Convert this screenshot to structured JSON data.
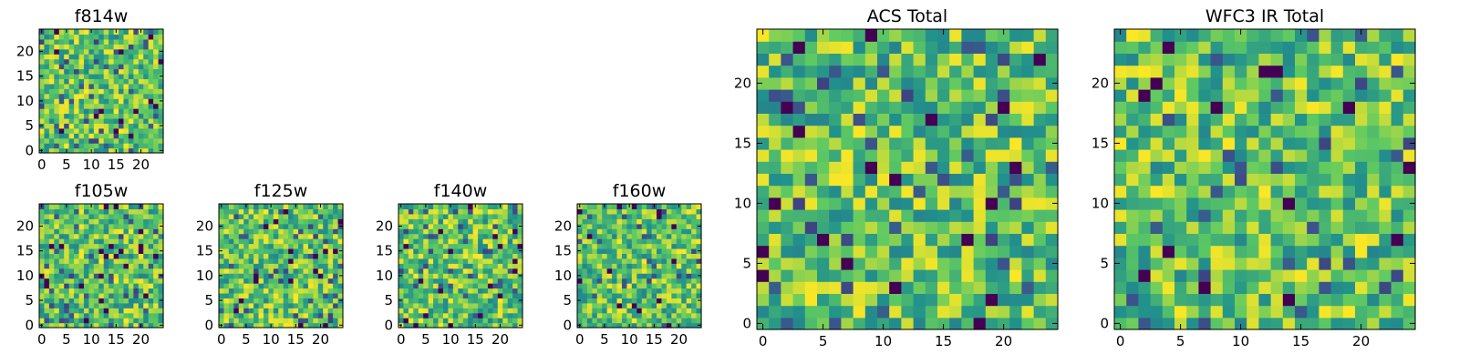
{
  "chart_data": [
    {
      "type": "heatmap",
      "title": "f814w",
      "xlim": [
        0,
        24
      ],
      "ylim": [
        0,
        24
      ],
      "xticks": [
        "0",
        "5",
        "10",
        "15",
        "20"
      ],
      "yticks": [
        "0",
        "5",
        "10",
        "15",
        "20"
      ],
      "colormap": [
        "#440154",
        "#3b528b",
        "#21918c",
        "#5ec962",
        "#fde725"
      ],
      "seed": 11,
      "grid": false
    },
    {
      "type": "heatmap",
      "title": "f105w",
      "xlim": [
        0,
        24
      ],
      "ylim": [
        0,
        24
      ],
      "xticks": [
        "0",
        "5",
        "10",
        "15",
        "20"
      ],
      "yticks": [
        "0",
        "5",
        "10",
        "15",
        "20"
      ],
      "colormap": [
        "#440154",
        "#3b528b",
        "#21918c",
        "#5ec962",
        "#fde725"
      ],
      "seed": 23,
      "grid": false
    },
    {
      "type": "heatmap",
      "title": "f125w",
      "xlim": [
        0,
        24
      ],
      "ylim": [
        0,
        24
      ],
      "xticks": [
        "0",
        "5",
        "10",
        "15",
        "20"
      ],
      "yticks": [
        "0",
        "5",
        "10",
        "15",
        "20"
      ],
      "colormap": [
        "#440154",
        "#3b528b",
        "#21918c",
        "#5ec962",
        "#fde725"
      ],
      "seed": 37,
      "grid": false
    },
    {
      "type": "heatmap",
      "title": "f140w",
      "xlim": [
        0,
        24
      ],
      "ylim": [
        0,
        24
      ],
      "xticks": [
        "0",
        "5",
        "10",
        "15",
        "20"
      ],
      "yticks": [
        "0",
        "5",
        "10",
        "15",
        "20"
      ],
      "colormap": [
        "#440154",
        "#3b528b",
        "#21918c",
        "#5ec962",
        "#fde725"
      ],
      "seed": 41,
      "grid": false
    },
    {
      "type": "heatmap",
      "title": "f160w",
      "xlim": [
        0,
        24
      ],
      "ylim": [
        0,
        24
      ],
      "xticks": [
        "0",
        "5",
        "10",
        "15",
        "20"
      ],
      "yticks": [
        "0",
        "5",
        "10",
        "15",
        "20"
      ],
      "colormap": [
        "#440154",
        "#3b528b",
        "#21918c",
        "#5ec962",
        "#fde725"
      ],
      "seed": 53,
      "grid": false
    },
    {
      "type": "heatmap",
      "title": "ACS Total",
      "xlim": [
        0,
        24
      ],
      "ylim": [
        0,
        24
      ],
      "xticks": [
        "0",
        "5",
        "10",
        "15",
        "20"
      ],
      "yticks": [
        "0",
        "5",
        "10",
        "15",
        "20"
      ],
      "colormap": [
        "#440154",
        "#3b528b",
        "#21918c",
        "#5ec962",
        "#fde725"
      ],
      "seed": 67,
      "grid": false
    },
    {
      "type": "heatmap",
      "title": "WFC3 IR Total",
      "xlim": [
        0,
        24
      ],
      "ylim": [
        0,
        24
      ],
      "xticks": [
        "0",
        "5",
        "10",
        "15",
        "20"
      ],
      "yticks": [
        "0",
        "5",
        "10",
        "15",
        "20"
      ],
      "colormap": [
        "#440154",
        "#3b528b",
        "#21918c",
        "#5ec962",
        "#fde725"
      ],
      "seed": 79,
      "grid": false
    }
  ]
}
